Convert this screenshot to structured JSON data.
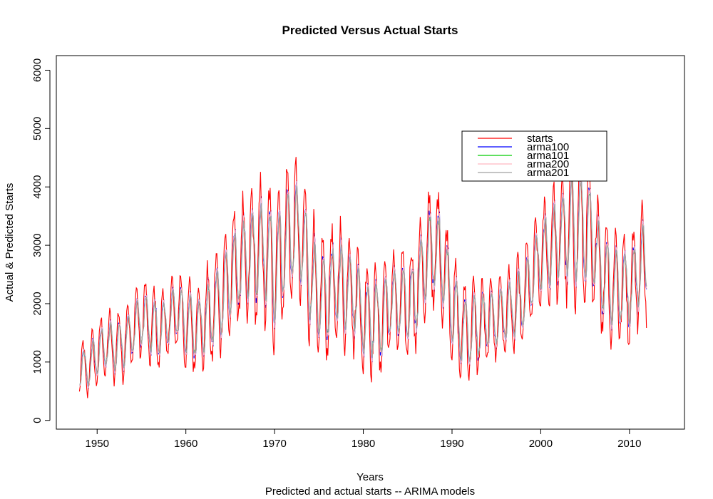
{
  "chart_data": {
    "type": "line",
    "title": "Predicted Versus Actual Starts",
    "xlabel": "Years",
    "ylabel": "Actual & Predicted Starts",
    "subtitle": "Predicted and actual starts -- ARIMA models",
    "xlim": [
      1945.4,
      2016.2
    ],
    "ylim": [
      -150,
      6250
    ],
    "x_ticks": [
      1950,
      1960,
      1970,
      1980,
      1990,
      2000,
      2010
    ],
    "x_tick_labels": [
      "1950",
      "1960",
      "1970",
      "1980",
      "1990",
      "2000",
      "2010"
    ],
    "y_ticks": [
      0,
      1000,
      2000,
      3000,
      4000,
      5000,
      6000
    ],
    "y_tick_labels": [
      "0",
      "1000",
      "2000",
      "3000",
      "4000",
      "5000",
      "6000"
    ],
    "grid": false,
    "legend_position": "top-right",
    "x_range": [
      1948.0,
      2011.9
    ],
    "points_per_year": 12,
    "series": [
      {
        "name": "starts",
        "color": "#ff0000",
        "width": 1.1
      },
      {
        "name": "arma100",
        "color": "#0000ff",
        "width": 1.1
      },
      {
        "name": "arma101",
        "color": "#00cc00",
        "width": 1.0
      },
      {
        "name": "arma200",
        "color": "#ffb6c1",
        "width": 1.0
      },
      {
        "name": "arma201",
        "color": "#a0a0a0",
        "width": 1.2
      }
    ],
    "annual_base": [
      [
        1948,
        850
      ],
      [
        1949,
        900
      ],
      [
        1950,
        1150
      ],
      [
        1951,
        1300
      ],
      [
        1952,
        1250
      ],
      [
        1953,
        1350
      ],
      [
        1954,
        1550
      ],
      [
        1955,
        1750
      ],
      [
        1956,
        1600
      ],
      [
        1957,
        1550
      ],
      [
        1958,
        1700
      ],
      [
        1959,
        1900
      ],
      [
        1960,
        1650
      ],
      [
        1961,
        1600
      ],
      [
        1962,
        1700
      ],
      [
        1963,
        1850
      ],
      [
        1964,
        2150
      ],
      [
        1965,
        2450
      ],
      [
        1966,
        2650
      ],
      [
        1967,
        2750
      ],
      [
        1968,
        2900
      ],
      [
        1969,
        2850
      ],
      [
        1970,
        2600
      ],
      [
        1971,
        3000
      ],
      [
        1972,
        3250
      ],
      [
        1973,
        3100
      ],
      [
        1974,
        2500
      ],
      [
        1975,
        2000
      ],
      [
        1976,
        2200
      ],
      [
        1977,
        2350
      ],
      [
        1978,
        2300
      ],
      [
        1979,
        2200
      ],
      [
        1980,
        1750
      ],
      [
        1981,
        1800
      ],
      [
        1982,
        1700
      ],
      [
        1983,
        2050
      ],
      [
        1984,
        2000
      ],
      [
        1985,
        1950
      ],
      [
        1986,
        2250
      ],
      [
        1987,
        2750
      ],
      [
        1988,
        2950
      ],
      [
        1989,
        2700
      ],
      [
        1990,
        1950
      ],
      [
        1991,
        1550
      ],
      [
        1992,
        1550
      ],
      [
        1993,
        1600
      ],
      [
        1994,
        1700
      ],
      [
        1995,
        1750
      ],
      [
        1996,
        1850
      ],
      [
        1997,
        1900
      ],
      [
        1998,
        2050
      ],
      [
        1999,
        2450
      ],
      [
        2000,
        2800
      ],
      [
        2001,
        2950
      ],
      [
        2002,
        3100
      ],
      [
        2003,
        3250
      ],
      [
        2004,
        3350
      ],
      [
        2005,
        3250
      ],
      [
        2006,
        2950
      ],
      [
        2007,
        2550
      ],
      [
        2008,
        2300
      ],
      [
        2009,
        2300
      ],
      [
        2010,
        2250
      ],
      [
        2011,
        2600
      ],
      [
        2012,
        2750
      ]
    ],
    "seasonal_amplitude": [
      [
        1948,
        450
      ],
      [
        1955,
        650
      ],
      [
        1960,
        700
      ],
      [
        1965,
        950
      ],
      [
        1970,
        1250
      ],
      [
        1975,
        1050
      ],
      [
        1980,
        950
      ],
      [
        1985,
        850
      ],
      [
        1987,
        1150
      ],
      [
        1990,
        850
      ],
      [
        1995,
        700
      ],
      [
        2000,
        800
      ],
      [
        2004,
        1300
      ],
      [
        2007,
        1050
      ],
      [
        2010,
        850
      ],
      [
        2012,
        1000
      ]
    ]
  }
}
